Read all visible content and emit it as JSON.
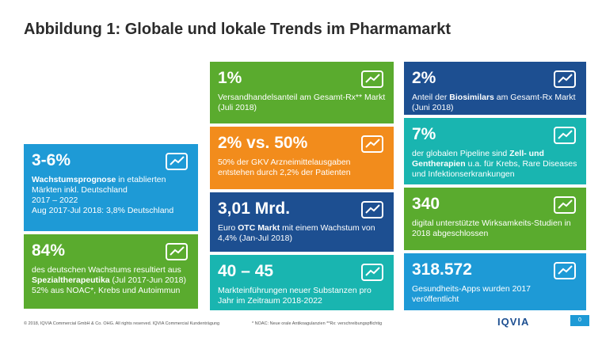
{
  "header": {
    "title": "Abbildung 1: Globale und lokale Trends im Pharmamarkt"
  },
  "tiles": [
    {
      "color": "#1e9ad6",
      "headline": "3-6%",
      "paragraphs": [
        [
          {
            "t": "Wachstumsprognose",
            "b": true
          },
          " in etablierten Märkten inkl. Deutschland"
        ],
        [
          "2017 – 2022"
        ],
        [
          "Aug 2017-Jul 2018: 3,8% Deutschland"
        ]
      ]
    },
    {
      "color": "#5aab2e",
      "headline": "84%",
      "paragraphs": [
        [
          "des deutschen Wachstums resultiert aus ",
          {
            "t": "Spezialtherapeutika",
            "b": true
          },
          " (Jul 2017-Jun 2018)"
        ],
        [
          "52% aus NOAC*, Krebs und Autoimmun"
        ]
      ]
    },
    {
      "color": "#5aab2e",
      "headline": "1%",
      "paragraphs": [
        [
          "Versandhandelsanteil am Gesamt-Rx** Markt (Juli 2018)"
        ]
      ]
    },
    {
      "color": "#f28c1c",
      "headline": "2% vs. 50%",
      "paragraphs": [
        [
          "50% der GKV Arzneimittelausgaben entstehen durch 2,2% der Patienten"
        ]
      ]
    },
    {
      "color": "#1d4f91",
      "headline": "3,01 Mrd.",
      "paragraphs": [
        [
          "Euro ",
          {
            "t": "OTC Markt",
            "b": true
          },
          " mit einem Wachstum von 4,4% (Jan-Jul 2018)"
        ]
      ]
    },
    {
      "color": "#19b5b0",
      "headline": "40 – 45",
      "paragraphs": [
        [
          "Markteinführungen neuer Substanzen pro Jahr im Zeitraum 2018-2022"
        ]
      ]
    },
    {
      "color": "#1d4f91",
      "headline": "2%",
      "paragraphs": [
        [
          "Anteil der ",
          {
            "t": "Biosimilars",
            "b": true
          },
          " am Gesamt-Rx Markt (Juni 2018)"
        ]
      ]
    },
    {
      "color": "#19b5b0",
      "headline": "7%",
      "paragraphs": [
        [
          "der globalen Pipeline sind ",
          {
            "t": "Zell- und Gentherapien",
            "b": true
          },
          " u.a. für Krebs, Rare Diseases und Infektionserkrankungen"
        ]
      ]
    },
    {
      "color": "#5aab2e",
      "headline": "340",
      "paragraphs": [
        [
          "digital unterstützte Wirksamkeits-Studien in 2018 abgeschlossen"
        ]
      ]
    },
    {
      "color": "#1e9ad6",
      "headline": "318.572",
      "paragraphs": [
        [
          "Gesundheits-Apps wurden 2017 veröffentlicht"
        ]
      ]
    }
  ],
  "footer": {
    "copyright": "© 2018, IQVIA Commercial GmbH & Co. OHG. All rights reserved. IQVIA Commercial Kundenträgung",
    "note": "* NOAC: Neue orale Antikoagulanzien **Rx: verschreibungspflichtig",
    "logo": "IQVIA",
    "page": "0"
  }
}
